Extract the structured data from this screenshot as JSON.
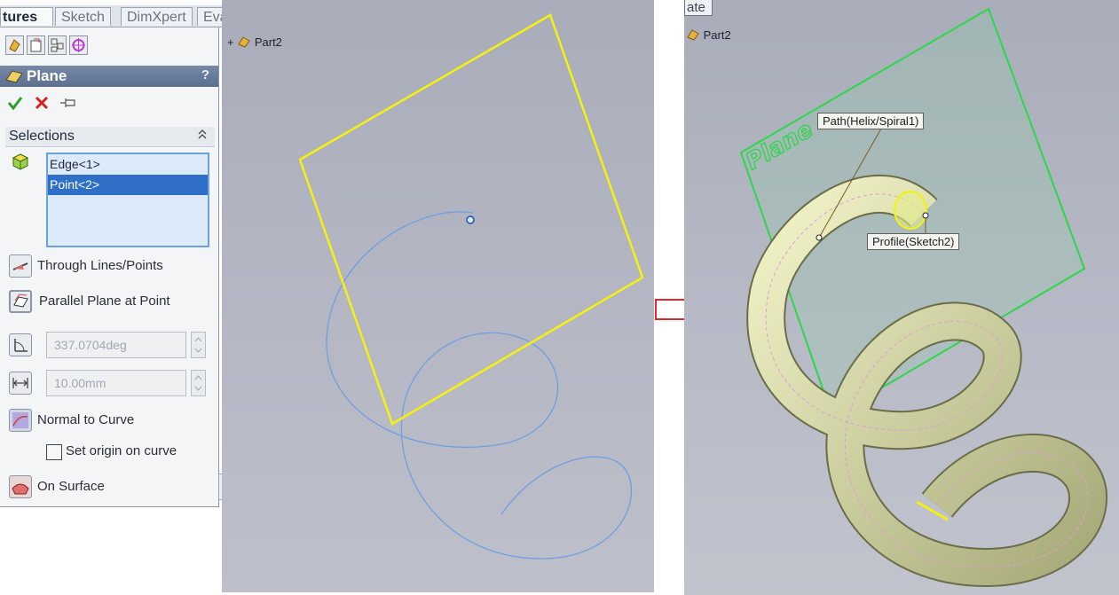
{
  "left_panel": {
    "tabs": [
      {
        "label": "tures",
        "active": true
      },
      {
        "label": "Sketch",
        "active": false
      },
      {
        "label": "DimXpert",
        "active": false
      },
      {
        "label": "Evaluate",
        "active": false
      }
    ],
    "header": {
      "title": "Plane",
      "help": "?"
    },
    "selections": {
      "title": "Selections",
      "collapse": "«",
      "items": [
        {
          "label": "Edge<1>",
          "selected": false
        },
        {
          "label": "Point<2>",
          "selected": true
        }
      ]
    },
    "options": {
      "through_lines": "Through Lines/Points",
      "parallel_plane": "Parallel Plane at Point",
      "angle_value": "337.0704deg",
      "distance_value": "10.00mm",
      "normal_to_curve": "Normal to Curve",
      "set_origin": "Set origin on curve",
      "set_origin_checked": false,
      "on_surface": "On Surface"
    }
  },
  "left_viewport": {
    "tree_label": "Part2",
    "tree_expand": "+"
  },
  "right_viewport": {
    "tab_fragment": "ate",
    "tree_label": "Part2",
    "plane_label": "Plane",
    "path_callout": "Path(Helix/Spiral1)",
    "profile_callout": "Profile(Sketch2)"
  },
  "colors": {
    "plane_outline_left": "#f5f10e",
    "plane_outline_right": "#2ed64a",
    "curve": "#6f9fe0",
    "tube": "#e8ecaa",
    "arrow": "#e02a2a",
    "selection_highlight": "#2f6fc8"
  }
}
